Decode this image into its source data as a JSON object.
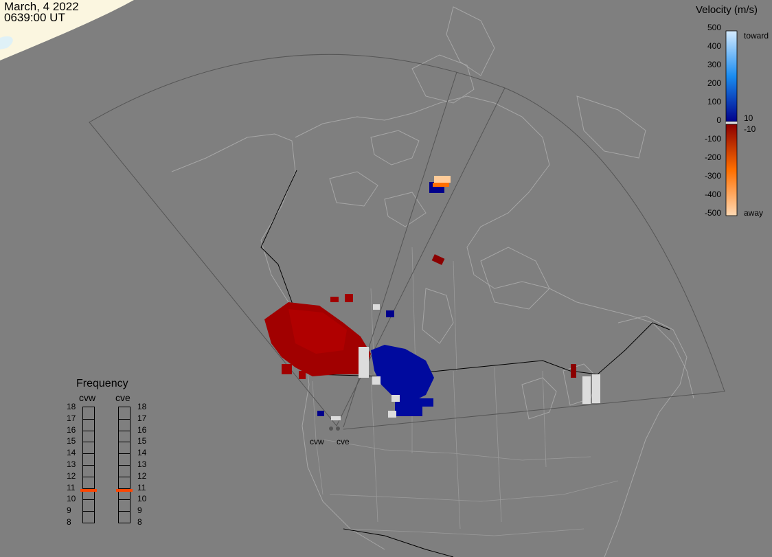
{
  "timestamp": {
    "date": "March, 4 2022",
    "time": "0639:00 UT"
  },
  "colorbar": {
    "title": "Velocity (m/s)",
    "ticks": [
      "500",
      "400",
      "300",
      "200",
      "100",
      "0",
      "-100",
      "-200",
      "-300",
      "-400",
      "-500"
    ],
    "toward_label": "toward",
    "away_label": "away",
    "pos_threshold": "10",
    "neg_threshold": "-10",
    "colors": {
      "toward_max": "#d6ecff",
      "toward_mid": "#1a8cf0",
      "toward_min": "#00008b",
      "away_min": "#8b0000",
      "away_mid": "#ff6f00",
      "away_max": "#ffd9b3",
      "ground_scatter": "#dcdcdc"
    }
  },
  "frequency_panel": {
    "title": "Frequency",
    "columns": [
      {
        "label": "cvw",
        "value_mhz": 10.8
      },
      {
        "label": "cve",
        "value_mhz": 10.8
      }
    ],
    "scale": [
      "18",
      "17",
      "16",
      "15",
      "14",
      "13",
      "12",
      "11",
      "10",
      "9",
      "8"
    ],
    "marker_color": "#ff4500"
  },
  "radars": [
    {
      "label": "cvw"
    },
    {
      "label": "cve"
    }
  ]
}
